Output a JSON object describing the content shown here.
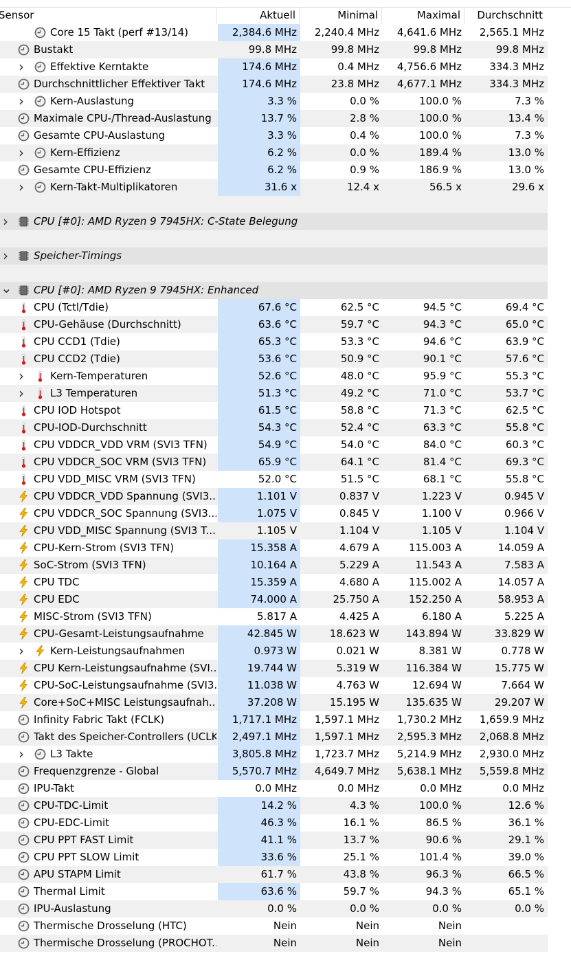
{
  "header": {
    "sensor": "Sensor",
    "current": "Aktuell",
    "min": "Minimal",
    "max": "Maximal",
    "avg": "Durchschnitt"
  },
  "rows": [
    {
      "type": "sensor",
      "indent": 2,
      "icon": "clock",
      "label": "Core 15 Takt (perf #13/14)",
      "v": [
        "2,384.6 MHz",
        "2,240.4 MHz",
        "4,641.6 MHz",
        "2,565.1 MHz"
      ],
      "hl": true
    },
    {
      "type": "sensor",
      "indent": 1,
      "icon": "clock",
      "label": "Bustakt",
      "v": [
        "99.8 MHz",
        "99.8 MHz",
        "99.8 MHz",
        "99.8 MHz"
      ],
      "hl": false
    },
    {
      "type": "sensor",
      "indent": 1,
      "expand": true,
      "icon": "clock",
      "label": "Effektive Kerntakte",
      "v": [
        "174.6 MHz",
        "0.4 MHz",
        "4,756.6 MHz",
        "334.3 MHz"
      ],
      "hl": true
    },
    {
      "type": "sensor",
      "indent": 1,
      "icon": "clock",
      "label": "Durchschnittlicher Effektiver Takt",
      "v": [
        "174.6 MHz",
        "23.8 MHz",
        "4,677.1 MHz",
        "334.3 MHz"
      ],
      "hl": true
    },
    {
      "type": "sensor",
      "indent": 1,
      "expand": true,
      "icon": "clock",
      "label": "Kern-Auslastung",
      "v": [
        "3.3 %",
        "0.0 %",
        "100.0 %",
        "7.3 %"
      ],
      "hl": true
    },
    {
      "type": "sensor",
      "indent": 1,
      "icon": "clock",
      "label": "Maximale CPU-/Thread-Auslastung",
      "v": [
        "13.7 %",
        "2.8 %",
        "100.0 %",
        "13.4 %"
      ],
      "hl": true
    },
    {
      "type": "sensor",
      "indent": 1,
      "icon": "clock",
      "label": "Gesamte CPU-Auslastung",
      "v": [
        "3.3 %",
        "0.4 %",
        "100.0 %",
        "7.3 %"
      ],
      "hl": true
    },
    {
      "type": "sensor",
      "indent": 1,
      "expand": true,
      "icon": "clock",
      "label": "Kern-Effizienz",
      "v": [
        "6.2 %",
        "0.0 %",
        "189.4 %",
        "13.0 %"
      ],
      "hl": true
    },
    {
      "type": "sensor",
      "indent": 1,
      "icon": "clock",
      "label": "Gesamte CPU-Effizienz",
      "v": [
        "6.2 %",
        "0.9 %",
        "186.9 %",
        "13.0 %"
      ],
      "hl": true
    },
    {
      "type": "sensor",
      "indent": 1,
      "expand": true,
      "icon": "clock",
      "label": "Kern-Takt-Multiplikatoren",
      "v": [
        "31.6 x",
        "12.4 x",
        "56.5 x",
        "29.6 x"
      ],
      "hl": true
    },
    {
      "type": "blank"
    },
    {
      "type": "group",
      "expanded": false,
      "label": "CPU [#0]: AMD Ryzen 9 7945HX: C-State Belegung"
    },
    {
      "type": "blank"
    },
    {
      "type": "group",
      "expanded": false,
      "label": "Speicher-Timings"
    },
    {
      "type": "blank"
    },
    {
      "type": "group",
      "expanded": true,
      "label": "CPU [#0]: AMD Ryzen 9 7945HX: Enhanced"
    },
    {
      "type": "sensor",
      "indent": 1,
      "icon": "therm",
      "label": "CPU (Tctl/Tdie)",
      "v": [
        "67.6 °C",
        "62.5 °C",
        "94.5 °C",
        "69.4 °C"
      ],
      "hl": true
    },
    {
      "type": "sensor",
      "indent": 1,
      "icon": "therm",
      "label": "CPU-Gehäuse (Durchschnitt)",
      "v": [
        "63.6 °C",
        "59.7 °C",
        "94.3 °C",
        "65.0 °C"
      ],
      "hl": true
    },
    {
      "type": "sensor",
      "indent": 1,
      "icon": "therm",
      "label": "CPU CCD1 (Tdie)",
      "v": [
        "65.3 °C",
        "53.3 °C",
        "94.6 °C",
        "63.9 °C"
      ],
      "hl": true
    },
    {
      "type": "sensor",
      "indent": 1,
      "icon": "therm",
      "label": "CPU CCD2 (Tdie)",
      "v": [
        "53.6 °C",
        "50.9 °C",
        "90.1 °C",
        "57.6 °C"
      ],
      "hl": true
    },
    {
      "type": "sensor",
      "indent": 1,
      "expand": true,
      "icon": "therm",
      "label": "Kern-Temperaturen",
      "v": [
        "52.6 °C",
        "48.0 °C",
        "95.9 °C",
        "55.3 °C"
      ],
      "hl": true
    },
    {
      "type": "sensor",
      "indent": 1,
      "expand": true,
      "icon": "therm",
      "label": "L3 Temperaturen",
      "v": [
        "51.3 °C",
        "49.2 °C",
        "71.0 °C",
        "53.7 °C"
      ],
      "hl": true
    },
    {
      "type": "sensor",
      "indent": 1,
      "icon": "therm",
      "label": "CPU IOD Hotspot",
      "v": [
        "61.5 °C",
        "58.8 °C",
        "71.3 °C",
        "62.5 °C"
      ],
      "hl": true
    },
    {
      "type": "sensor",
      "indent": 1,
      "icon": "therm",
      "label": "CPU-IOD-Durchschnitt",
      "v": [
        "54.3 °C",
        "52.4 °C",
        "63.3 °C",
        "55.8 °C"
      ],
      "hl": true
    },
    {
      "type": "sensor",
      "indent": 1,
      "icon": "therm",
      "label": "CPU VDDCR_VDD VRM (SVI3 TFN)",
      "v": [
        "54.9 °C",
        "54.0 °C",
        "84.0 °C",
        "60.3 °C"
      ],
      "hl": true
    },
    {
      "type": "sensor",
      "indent": 1,
      "icon": "therm",
      "label": "CPU VDDCR_SOC VRM (SVI3 TFN)",
      "v": [
        "65.9 °C",
        "64.1 °C",
        "81.4 °C",
        "69.3 °C"
      ],
      "hl": true
    },
    {
      "type": "sensor",
      "indent": 1,
      "icon": "therm",
      "label": "CPU VDD_MISC VRM (SVI3 TFN)",
      "v": [
        "52.0 °C",
        "51.5 °C",
        "68.1 °C",
        "55.8 °C"
      ],
      "hl": false
    },
    {
      "type": "sensor",
      "indent": 1,
      "icon": "bolt",
      "label": "CPU VDDCR_VDD Spannung (SVI3...",
      "v": [
        "1.101 V",
        "0.837 V",
        "1.223 V",
        "0.945 V"
      ],
      "hl": true
    },
    {
      "type": "sensor",
      "indent": 1,
      "icon": "bolt",
      "label": "CPU VDDCR_SOC Spannung (SVI3...",
      "v": [
        "1.075 V",
        "0.845 V",
        "1.100 V",
        "0.966 V"
      ],
      "hl": true
    },
    {
      "type": "sensor",
      "indent": 1,
      "icon": "bolt",
      "label": "CPU VDD_MISC Spannung (SVI3 T...",
      "v": [
        "1.105 V",
        "1.104 V",
        "1.105 V",
        "1.104 V"
      ],
      "hl": false
    },
    {
      "type": "sensor",
      "indent": 1,
      "icon": "bolt",
      "label": "CPU-Kern-Strom (SVI3 TFN)",
      "v": [
        "15.358 A",
        "4.679 A",
        "115.003 A",
        "14.059 A"
      ],
      "hl": true
    },
    {
      "type": "sensor",
      "indent": 1,
      "icon": "bolt",
      "label": "SoC-Strom (SVI3 TFN)",
      "v": [
        "10.164 A",
        "5.229 A",
        "11.543 A",
        "7.583 A"
      ],
      "hl": true
    },
    {
      "type": "sensor",
      "indent": 1,
      "icon": "bolt",
      "label": "CPU TDC",
      "v": [
        "15.359 A",
        "4.680 A",
        "115.002 A",
        "14.057 A"
      ],
      "hl": true
    },
    {
      "type": "sensor",
      "indent": 1,
      "icon": "bolt",
      "label": "CPU EDC",
      "v": [
        "74.000 A",
        "25.750 A",
        "152.250 A",
        "58.953 A"
      ],
      "hl": true
    },
    {
      "type": "sensor",
      "indent": 1,
      "icon": "bolt",
      "label": "MISC-Strom (SVI3 TFN)",
      "v": [
        "5.817 A",
        "4.425 A",
        "6.180 A",
        "5.225 A"
      ],
      "hl": false
    },
    {
      "type": "sensor",
      "indent": 1,
      "icon": "bolt",
      "label": "CPU-Gesamt-Leistungsaufnahme",
      "v": [
        "42.845 W",
        "18.623 W",
        "143.894 W",
        "33.829 W"
      ],
      "hl": true
    },
    {
      "type": "sensor",
      "indent": 1,
      "expand": true,
      "icon": "bolt",
      "label": "Kern-Leistungsaufnahmen",
      "v": [
        "0.973 W",
        "0.021 W",
        "8.381 W",
        "0.778 W"
      ],
      "hl": true
    },
    {
      "type": "sensor",
      "indent": 1,
      "icon": "bolt",
      "label": "CPU Kern-Leistungsaufnahme (SVI...",
      "v": [
        "19.744 W",
        "5.319 W",
        "116.384 W",
        "15.775 W"
      ],
      "hl": true
    },
    {
      "type": "sensor",
      "indent": 1,
      "icon": "bolt",
      "label": "CPU-SoC-Leistungsaufnahme (SVI3...",
      "v": [
        "11.038 W",
        "4.763 W",
        "12.694 W",
        "7.664 W"
      ],
      "hl": true
    },
    {
      "type": "sensor",
      "indent": 1,
      "icon": "bolt",
      "label": "Core+SoC+MISC Leistungsaufnah...",
      "v": [
        "37.208 W",
        "15.195 W",
        "135.635 W",
        "29.207 W"
      ],
      "hl": true
    },
    {
      "type": "sensor",
      "indent": 1,
      "icon": "clock",
      "label": "Infinity Fabric Takt (FCLK)",
      "v": [
        "1,717.1 MHz",
        "1,597.1 MHz",
        "1,730.2 MHz",
        "1,659.9 MHz"
      ],
      "hl": true
    },
    {
      "type": "sensor",
      "indent": 1,
      "icon": "clock",
      "label": "Takt des Speicher-Controllers (UCLK)",
      "v": [
        "2,497.1 MHz",
        "1,597.1 MHz",
        "2,595.3 MHz",
        "2,068.8 MHz"
      ],
      "hl": true
    },
    {
      "type": "sensor",
      "indent": 1,
      "expand": true,
      "icon": "clock",
      "label": "L3 Takte",
      "v": [
        "3,805.8 MHz",
        "1,723.7 MHz",
        "5,214.9 MHz",
        "2,930.0 MHz"
      ],
      "hl": true
    },
    {
      "type": "sensor",
      "indent": 1,
      "icon": "clock",
      "label": "Frequenzgrenze - Global",
      "v": [
        "5,570.7 MHz",
        "4,649.7 MHz",
        "5,638.1 MHz",
        "5,559.8 MHz"
      ],
      "hl": true
    },
    {
      "type": "sensor",
      "indent": 1,
      "icon": "clock",
      "label": "IPU-Takt",
      "v": [
        "0.0 MHz",
        "0.0 MHz",
        "0.0 MHz",
        "0.0 MHz"
      ],
      "hl": false
    },
    {
      "type": "sensor",
      "indent": 1,
      "icon": "clock",
      "label": "CPU-TDC-Limit",
      "v": [
        "14.2 %",
        "4.3 %",
        "100.0 %",
        "12.6 %"
      ],
      "hl": true
    },
    {
      "type": "sensor",
      "indent": 1,
      "icon": "clock",
      "label": "CPU-EDC-Limit",
      "v": [
        "46.3 %",
        "16.1 %",
        "86.5 %",
        "36.1 %"
      ],
      "hl": true
    },
    {
      "type": "sensor",
      "indent": 1,
      "icon": "clock",
      "label": "CPU PPT FAST Limit",
      "v": [
        "41.1 %",
        "13.7 %",
        "90.6 %",
        "29.1 %"
      ],
      "hl": true
    },
    {
      "type": "sensor",
      "indent": 1,
      "icon": "clock",
      "label": "CPU PPT SLOW Limit",
      "v": [
        "33.6 %",
        "25.1 %",
        "101.4 %",
        "39.0 %"
      ],
      "hl": true
    },
    {
      "type": "sensor",
      "indent": 1,
      "icon": "clock",
      "label": "APU STAPM Limit",
      "v": [
        "61.7 %",
        "43.8 %",
        "96.3 %",
        "66.5 %"
      ],
      "hl": false
    },
    {
      "type": "sensor",
      "indent": 1,
      "icon": "clock",
      "label": "Thermal Limit",
      "v": [
        "63.6 %",
        "59.7 %",
        "94.3 %",
        "65.1 %"
      ],
      "hl": true
    },
    {
      "type": "sensor",
      "indent": 1,
      "icon": "clock",
      "label": "IPU-Auslastung",
      "v": [
        "0.0 %",
        "0.0 %",
        "0.0 %",
        "0.0 %"
      ],
      "hl": false
    },
    {
      "type": "sensor",
      "indent": 1,
      "icon": "clock",
      "label": "Thermische Drosselung (HTC)",
      "v": [
        "Nein",
        "Nein",
        "Nein",
        ""
      ],
      "hl": false
    },
    {
      "type": "sensor",
      "indent": 1,
      "icon": "clock",
      "label": "Thermische Drosselung (PROCHOT...",
      "v": [
        "Nein",
        "Nein",
        "Nein",
        ""
      ],
      "hl": false
    }
  ]
}
